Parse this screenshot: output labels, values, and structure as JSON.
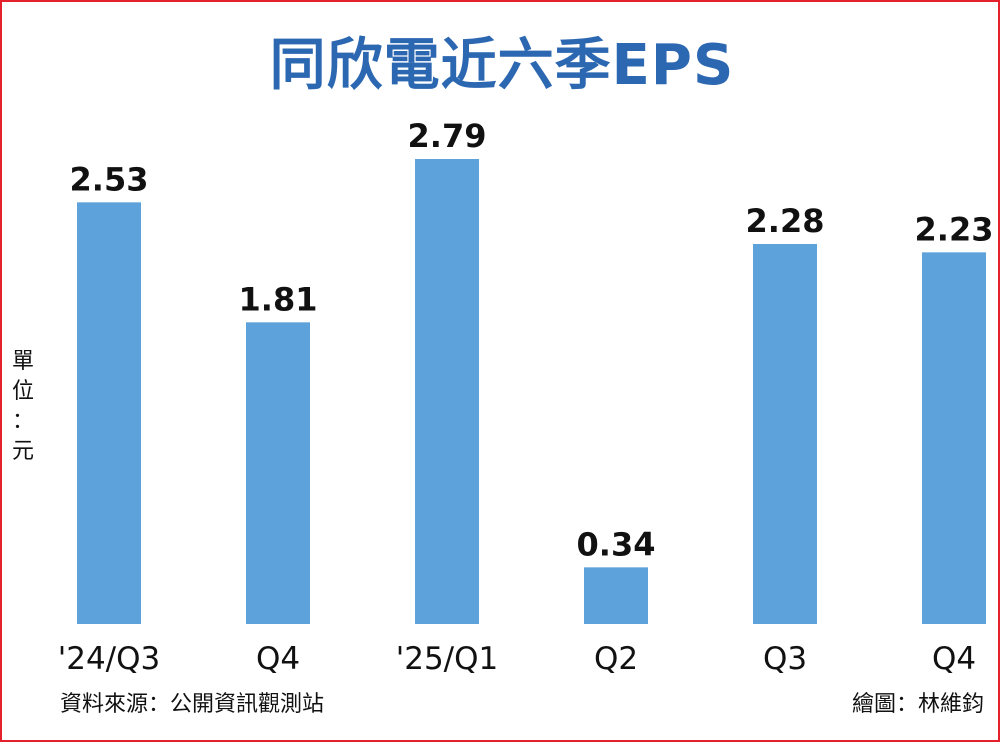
{
  "title": "同欣電近六季EPS",
  "unit_label": "單\n位\n：\n元",
  "source": "資料來源：公開資訊觀測站",
  "credit": "繪圖：林維鈞",
  "colors": {
    "bar": "#5ea2dc",
    "title": "#2c67b1",
    "border": "#e4202b"
  },
  "chart_data": {
    "type": "bar",
    "title": "同欣電近六季EPS",
    "ylabel": "單位：元",
    "xlabel": "",
    "categories": [
      "'24/Q3",
      "Q4",
      "'25/Q1",
      "Q2",
      "Q3",
      "Q4"
    ],
    "values": [
      2.53,
      1.81,
      2.79,
      0.34,
      2.28,
      2.23
    ],
    "value_labels": [
      "2.53",
      "1.81",
      "2.79",
      "0.34",
      "2.28",
      "2.23"
    ],
    "ylim": [
      0,
      2.79
    ],
    "grid": false,
    "legend": "none"
  }
}
